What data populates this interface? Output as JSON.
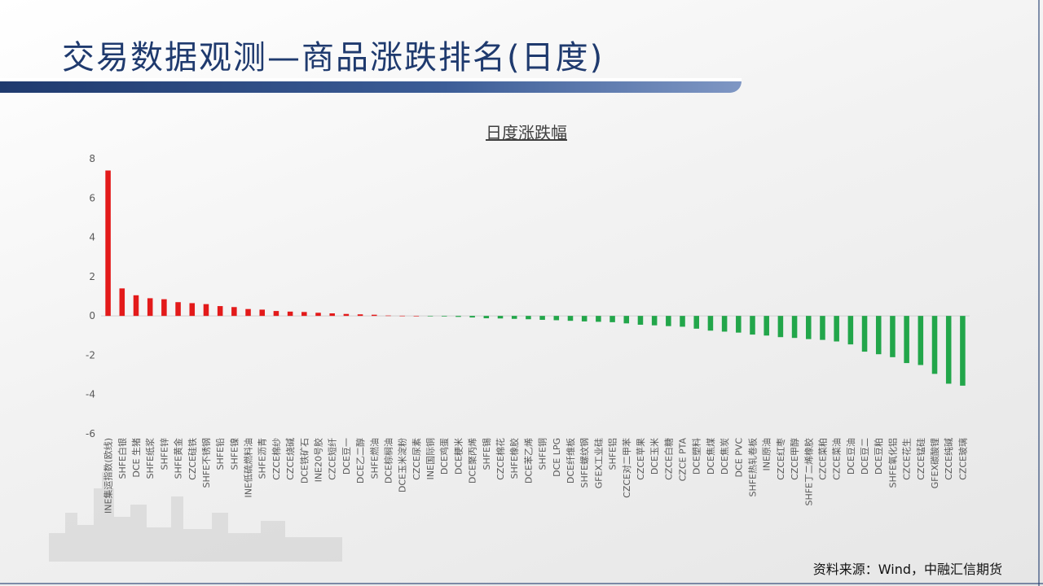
{
  "header": {
    "title": "交易数据观测—商品涨跌排名(日度)"
  },
  "footer": {
    "source": "资料来源：Wind，中融汇信期货"
  },
  "colors": {
    "positive": "#e31a1a",
    "negative": "#22a64a",
    "title": "#1f3a6e",
    "axis_text": "#595959"
  },
  "chart_data": {
    "type": "bar",
    "title": "日度涨跌幅",
    "xlabel": "",
    "ylabel": "",
    "ylim": [
      -6,
      8
    ],
    "yticks": [
      8,
      6,
      4,
      2,
      0,
      -2,
      -4,
      -6
    ],
    "grid": false,
    "legend": "none",
    "categories": [
      "INE集运指数(欧线)",
      "SHFE白银",
      "DCE 生猪",
      "SHFE纸浆",
      "SHFE锌",
      "SHFE黄金",
      "CZCE硅铁",
      "SHFE不锈钢",
      "SHFE铅",
      "SHFE镍",
      "INE低硫燃料油",
      "SHFE沥青",
      "CZCE棉纱",
      "CZCE烧碱",
      "DCE铁矿石",
      "INE20号胶",
      "CZCE短纤",
      "DCE豆一",
      "DCE乙二醇",
      "SHFE燃油",
      "DCE棕榈油",
      "DCE玉米淀粉",
      "CZCE尿素",
      "INE国际铜",
      "DCE鸡蛋",
      "DCE粳米",
      "DCE聚丙烯",
      "SHFE锡",
      "CZCE棉花",
      "SHFE橡胶",
      "DCE苯乙烯",
      "SHFE铜",
      "DCE LPG",
      "DCE纤维板",
      "SHFE螺纹钢",
      "GFEX工业硅",
      "SHFE铝",
      "CZCE对二甲苯",
      "CZCE苹果",
      "DCE玉米",
      "CZCE白糖",
      "CZCE PTA",
      "DCE塑料",
      "DCE焦煤",
      "DCE焦炭",
      "DCE PVC",
      "SHFE热轧卷板",
      "INE原油",
      "CZCE红枣",
      "CZCE甲醇",
      "SHFE丁二烯橡胶",
      "CZCE菜粕",
      "CZCE菜油",
      "DCE豆油",
      "DCE豆二",
      "DCE豆粕",
      "SHFE氧化铝",
      "CZCE花生",
      "CZCE锰硅",
      "GFEX碳酸锂",
      "CZCE纯碱",
      "CZCE玻璃"
    ],
    "values": [
      7.4,
      1.4,
      1.05,
      0.9,
      0.85,
      0.7,
      0.65,
      0.6,
      0.5,
      0.45,
      0.35,
      0.32,
      0.25,
      0.22,
      0.2,
      0.16,
      0.13,
      0.1,
      0.08,
      0.06,
      0.02,
      0.01,
      0.0,
      -0.01,
      -0.03,
      -0.05,
      -0.08,
      -0.12,
      -0.13,
      -0.15,
      -0.17,
      -0.2,
      -0.22,
      -0.25,
      -0.28,
      -0.3,
      -0.32,
      -0.38,
      -0.45,
      -0.48,
      -0.52,
      -0.55,
      -0.65,
      -0.75,
      -0.8,
      -0.85,
      -0.95,
      -1.0,
      -1.08,
      -1.12,
      -1.18,
      -1.22,
      -1.3,
      -1.45,
      -1.82,
      -1.95,
      -2.1,
      -2.4,
      -2.5,
      -2.95,
      -3.45,
      -3.55
    ]
  }
}
